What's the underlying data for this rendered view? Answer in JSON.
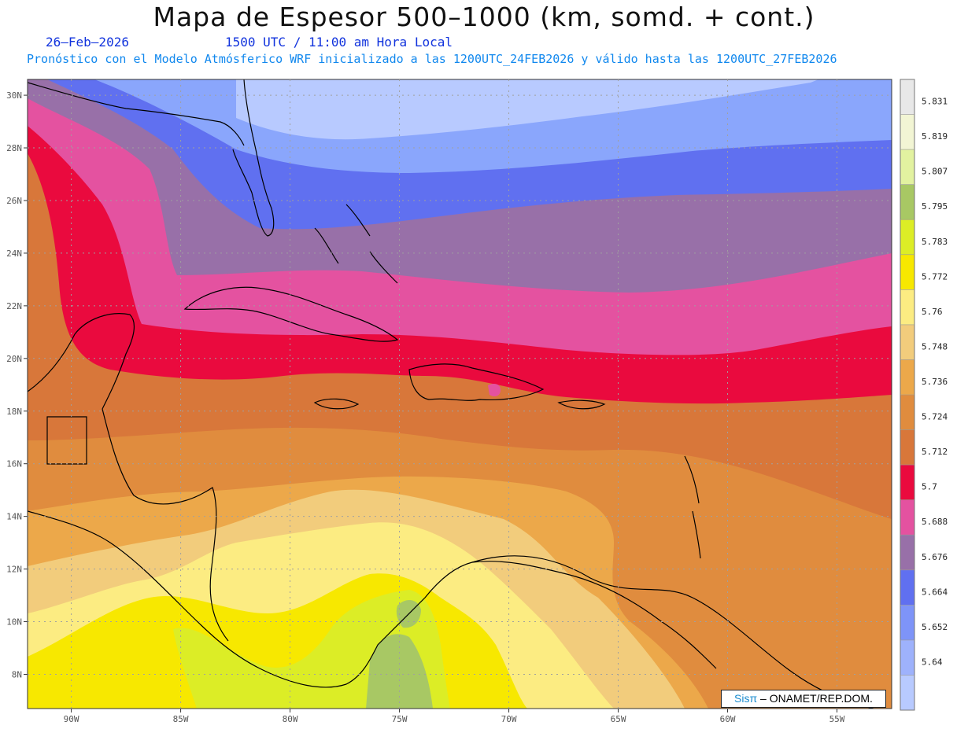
{
  "title": "Mapa de Espesor 500–1000 (km, somd. + cont.)",
  "date_label": "26–Feb–2026",
  "time_label": "1500 UTC / 11:00 am Hora Local",
  "model_label": "Pronóstico con el Modelo Atmósferico WRF inicializado a las 1200UTC_24FEB2026 y válido hasta las  1200UTC_27FEB2026",
  "credit": {
    "logo": "Sisπ",
    "text": " – ONAMET/REP.DOM."
  },
  "map": {
    "lon_range": [
      -92,
      -52.5
    ],
    "lat_range": [
      6.7,
      30.6
    ],
    "lat_ticks": [
      {
        "value": 30,
        "label": "30N"
      },
      {
        "value": 28,
        "label": "28N"
      },
      {
        "value": 26,
        "label": "26N"
      },
      {
        "value": 24,
        "label": "24N"
      },
      {
        "value": 22,
        "label": "22N"
      },
      {
        "value": 20,
        "label": "20N"
      },
      {
        "value": 18,
        "label": "18N"
      },
      {
        "value": 16,
        "label": "16N"
      },
      {
        "value": 14,
        "label": "14N"
      },
      {
        "value": 12,
        "label": "12N"
      },
      {
        "value": 10,
        "label": "10N"
      },
      {
        "value": 8,
        "label": "8N"
      }
    ],
    "lon_ticks": [
      {
        "value": -90,
        "label": "90W"
      },
      {
        "value": -85,
        "label": "85W"
      },
      {
        "value": -80,
        "label": "80W"
      },
      {
        "value": -75,
        "label": "75W"
      },
      {
        "value": -70,
        "label": "70W"
      },
      {
        "value": -65,
        "label": "65W"
      },
      {
        "value": -60,
        "label": "60W"
      },
      {
        "value": -55,
        "label": "55W"
      }
    ],
    "gridlines": true
  },
  "colorbar": {
    "labels": [
      "5.831",
      "5.819",
      "5.807",
      "5.795",
      "5.783",
      "5.772",
      "5.76",
      "5.748",
      "5.736",
      "5.724",
      "5.712",
      "5.7",
      "5.688",
      "5.676",
      "5.664",
      "5.652",
      "5.64"
    ],
    "colors_top_to_bottom": [
      "#e8e8e8",
      "#f2f5d4",
      "#e2f2a0",
      "#a8c864",
      "#dced26",
      "#f7e800",
      "#fcec82",
      "#f2cc7c",
      "#eca84a",
      "#e08c3e",
      "#d8773a",
      "#ea0a3e",
      "#e452a0",
      "#9870a8",
      "#6070f0",
      "#7e94f8",
      "#9eb2fc",
      "#b8caff"
    ]
  }
}
